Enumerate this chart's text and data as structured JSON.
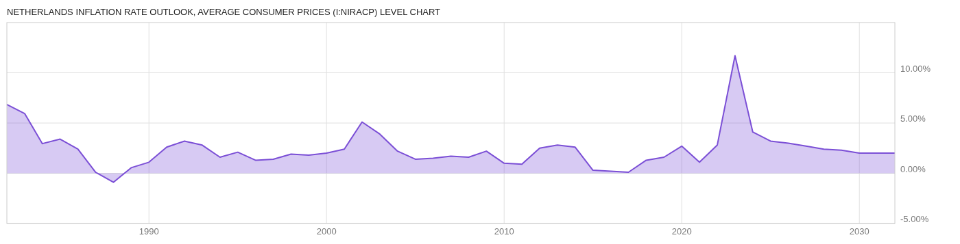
{
  "chart_data": {
    "type": "area",
    "title": "NETHERLANDS INFLATION RATE OUTLOOK, AVERAGE CONSUMER PRICES (I:NIRACP) LEVEL CHART",
    "x": [
      1982,
      1983,
      1984,
      1985,
      1986,
      1987,
      1988,
      1989,
      1990,
      1991,
      1992,
      1993,
      1994,
      1995,
      1996,
      1997,
      1998,
      1999,
      2000,
      2001,
      2002,
      2003,
      2004,
      2005,
      2006,
      2007,
      2008,
      2009,
      2010,
      2011,
      2012,
      2013,
      2014,
      2015,
      2016,
      2017,
      2018,
      2019,
      2020,
      2021,
      2022,
      2023,
      2024,
      2025,
      2026,
      2027,
      2028,
      2029,
      2030,
      2031,
      2032
    ],
    "series": [
      {
        "color": "#7b4fd6",
        "values": [
          6.85,
          5.95,
          2.95,
          3.4,
          2.4,
          0.1,
          -0.9,
          0.55,
          1.1,
          2.6,
          3.2,
          2.8,
          1.6,
          2.1,
          1.3,
          1.4,
          1.9,
          1.8,
          2.0,
          2.4,
          5.1,
          3.9,
          2.2,
          1.4,
          1.5,
          1.7,
          1.6,
          2.2,
          1.0,
          0.9,
          2.5,
          2.8,
          2.6,
          0.3,
          0.2,
          0.1,
          1.3,
          1.6,
          2.7,
          1.1,
          2.8,
          11.7,
          4.1,
          3.2,
          3.0,
          2.7,
          2.4,
          2.3,
          2.0,
          2.0,
          2.0
        ]
      }
    ],
    "xlim": [
      1982,
      2032
    ],
    "xticks": [
      1990,
      2000,
      2010,
      2020,
      2030
    ],
    "ylim": [
      -5,
      15
    ],
    "yticks": [
      {
        "value": -5,
        "label": "-5.00%"
      },
      {
        "value": 0,
        "label": "0.00%"
      },
      {
        "value": 5,
        "label": "5.00%"
      },
      {
        "value": 10,
        "label": "10.00%"
      }
    ],
    "grid": true
  }
}
